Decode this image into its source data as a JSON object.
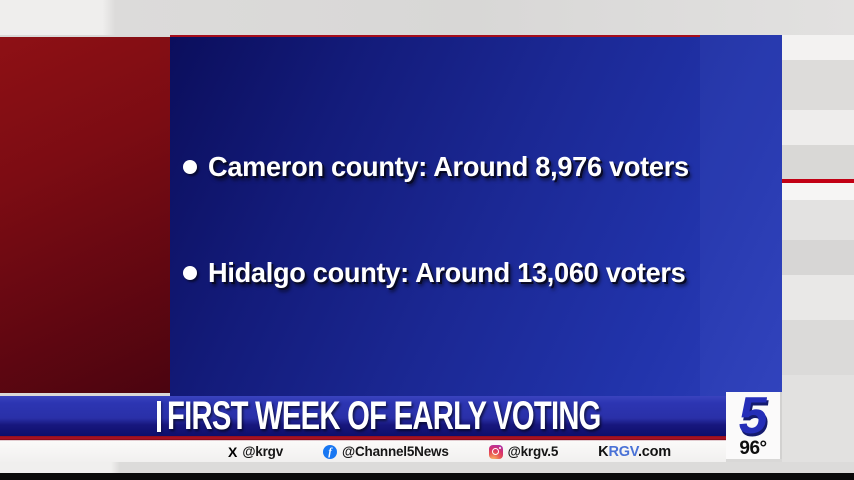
{
  "screen": {
    "bullets": [
      "Cameron county: Around 8,976 voters",
      "Hidalgo county: Around 13,060 voters"
    ]
  },
  "banner": {
    "title": "FIRST WEEK OF EARLY VOTING"
  },
  "social": {
    "x": {
      "icon_glyph": "X",
      "handle": "@krgv"
    },
    "facebook": {
      "icon_glyph": "f",
      "handle": "@Channel5News"
    },
    "instagram": {
      "handle": "@krgv.5"
    },
    "website": {
      "part1": "K",
      "part2": "RGV",
      "part3": ".com"
    }
  },
  "station": {
    "logo_number": "5",
    "temperature": "96°"
  },
  "colors": {
    "panel_blue": "#1b2894",
    "panel_red": "#7c0c13",
    "banner_blue": "#2a30a8",
    "accent_red": "#b01224",
    "facebook_blue": "#1877f2",
    "website_blue": "#4a72d6",
    "logo_blue": "#252eb8"
  }
}
